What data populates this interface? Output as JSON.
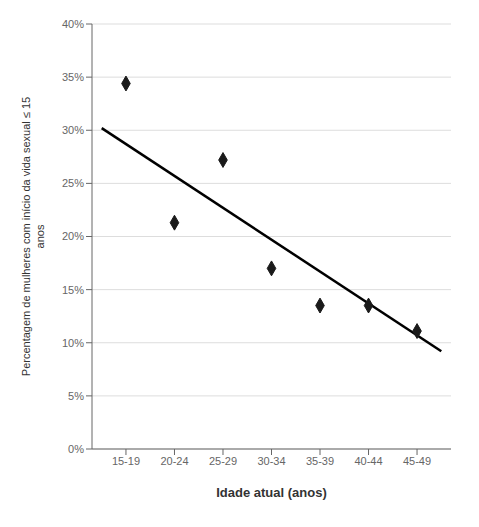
{
  "chart_data": {
    "type": "scatter",
    "xlabel": "Idade atual (anos)",
    "ylabel": "Percentagem de mulheres com início da vida sexual ≤ 15\nanos",
    "xlim": [
      0.3,
      7.7
    ],
    "xticks": [
      {
        "value": 1,
        "label": "15-19"
      },
      {
        "value": 2,
        "label": "20-24"
      },
      {
        "value": 3,
        "label": "25-29"
      },
      {
        "value": 4,
        "label": "30-34"
      },
      {
        "value": 5,
        "label": "35-39"
      },
      {
        "value": 6,
        "label": "40-44"
      },
      {
        "value": 7,
        "label": "45-49"
      }
    ],
    "ylim": [
      0.0,
      0.4
    ],
    "yticks": [
      {
        "value": 0.0,
        "label": "0%"
      },
      {
        "value": 0.05,
        "label": "5%"
      },
      {
        "value": 0.1,
        "label": "10%"
      },
      {
        "value": 0.15,
        "label": "15%"
      },
      {
        "value": 0.2,
        "label": "20%"
      },
      {
        "value": 0.25,
        "label": "25%"
      },
      {
        "value": 0.3,
        "label": "30%"
      },
      {
        "value": 0.35,
        "label": "35%"
      },
      {
        "value": 0.4,
        "label": "40%"
      }
    ],
    "grid": true,
    "series": [
      {
        "type": "scatter",
        "marker": "diamond",
        "color": "#1a1a1a",
        "x": [
          1,
          2,
          3,
          4,
          5,
          6,
          7
        ],
        "values": [
          0.344,
          0.213,
          0.272,
          0.17,
          0.135,
          0.135,
          0.111
        ]
      },
      {
        "type": "line",
        "color": "#000000",
        "x": [
          0.5,
          7.5
        ],
        "values": [
          0.302,
          0.092
        ]
      }
    ]
  }
}
